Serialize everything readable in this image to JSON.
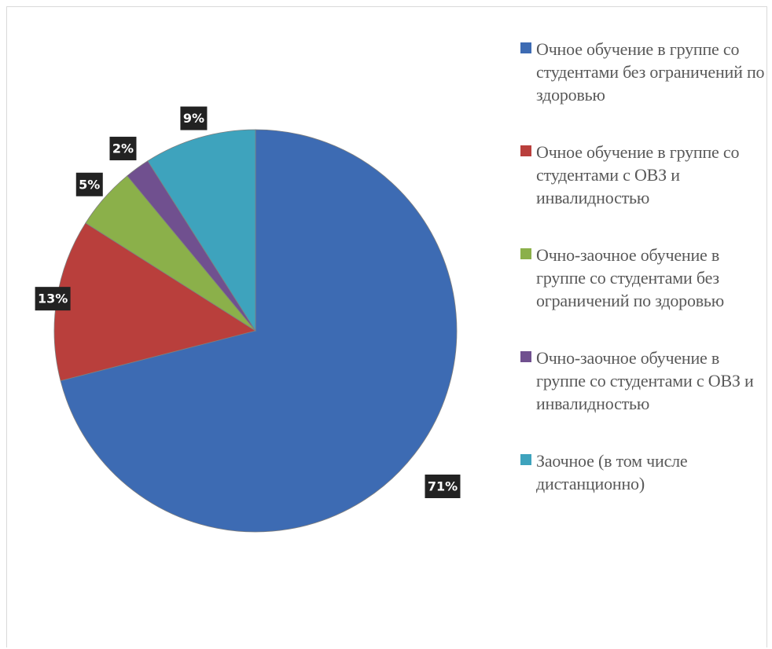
{
  "chart_data": {
    "type": "pie",
    "title": "",
    "slices": [
      {
        "label": "Очное обучение в группе со студентами без ограничений по здоровью",
        "value": 71,
        "display": "71%",
        "color": "#3d6bb3"
      },
      {
        "label": "Очное обучение в группе со студентами с ОВЗ и инвалидностью",
        "value": 13,
        "display": "13%",
        "color": "#b93f3c"
      },
      {
        "label": "Очно-заочное обучение в группе со студентами без ограничений по здоровью",
        "value": 5,
        "display": "5%",
        "color": "#8bb04a"
      },
      {
        "label": "Очно-заочное обучение в группе со студентами с ОВЗ и инвалидностью",
        "value": 2,
        "display": "2%",
        "color": "#70508f"
      },
      {
        "label": "Заочное (в том числе дистанционно)",
        "value": 9,
        "display": "9%",
        "color": "#3ea3bd"
      }
    ],
    "legend_position": "right",
    "start_angle": "12 o'clock",
    "direction": "clockwise"
  }
}
